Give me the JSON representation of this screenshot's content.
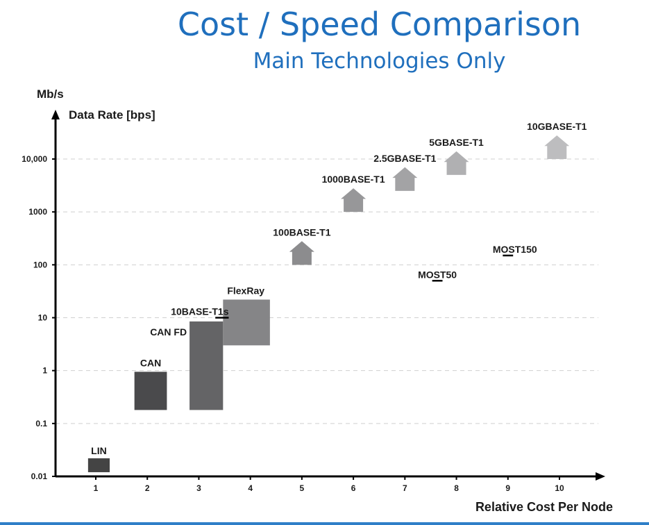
{
  "chart_data": {
    "type": "bar",
    "title": "Cost / Speed Comparison",
    "subtitle": "Main Technologies Only",
    "ylabel_unit": "Mb/s",
    "ylabel": "Data Rate [bps]",
    "xlabel": "Relative Cost Per Node",
    "y_scale": "log",
    "ylim": [
      0.01,
      30000
    ],
    "xlim": [
      0.3,
      11
    ],
    "x_ticks": [
      "1",
      "2",
      "3",
      "4",
      "5",
      "6",
      "7",
      "8",
      "9",
      "10"
    ],
    "y_ticks": [
      {
        "value": 0.01,
        "label": "0.01"
      },
      {
        "value": 0.1,
        "label": "0.1"
      },
      {
        "value": 1,
        "label": "1"
      },
      {
        "value": 10,
        "label": "10"
      },
      {
        "value": 100,
        "label": "100"
      },
      {
        "value": 1000,
        "label": "1000"
      },
      {
        "value": 10000,
        "label": "10,000"
      }
    ],
    "grid": true,
    "technologies": [
      {
        "name": "LIN",
        "kind": "box",
        "x_range": [
          0.85,
          1.27
        ],
        "y_range": [
          0.012,
          0.022
        ],
        "color": "#444444"
      },
      {
        "name": "CAN",
        "kind": "box",
        "x_range": [
          1.75,
          2.38
        ],
        "y_range": [
          0.18,
          0.95
        ],
        "color": "#4a4a4c"
      },
      {
        "name": "CAN FD",
        "kind": "box",
        "x_range": [
          2.82,
          3.47
        ],
        "y_range": [
          0.18,
          8.5
        ],
        "color": "#646466"
      },
      {
        "name": "FlexRay",
        "kind": "box",
        "x_range": [
          3.47,
          4.38
        ],
        "y_range": [
          3,
          22
        ],
        "color": "#858587"
      },
      {
        "name": "10BASE-T1s",
        "kind": "tick",
        "x_range": [
          3.32,
          3.58
        ],
        "y": 10
      },
      {
        "name": "100BASE-T1",
        "kind": "arrow",
        "x": 5.0,
        "y_range": [
          100,
          280
        ],
        "color": "#8c8c8e"
      },
      {
        "name": "1000BASE-T1",
        "kind": "arrow",
        "x": 6.0,
        "y_range": [
          1000,
          2800
        ],
        "color": "#979799"
      },
      {
        "name": "2.5GBASE-T1",
        "kind": "arrow",
        "x": 7.0,
        "y_range": [
          2500,
          7000
        ],
        "color": "#a3a3a5"
      },
      {
        "name": "5GBASE-T1",
        "kind": "arrow",
        "x": 8.0,
        "y_range": [
          5000,
          14000
        ],
        "color": "#b0b0b2"
      },
      {
        "name": "10GBASE-T1",
        "kind": "arrow",
        "x": 9.95,
        "y_range": [
          10000,
          28000
        ],
        "color": "#bdbdbf"
      },
      {
        "name": "MOST50",
        "kind": "tick",
        "x_range": [
          7.53,
          7.73
        ],
        "y": 50
      },
      {
        "name": "MOST150",
        "kind": "tick",
        "x_range": [
          8.9,
          9.1
        ],
        "y": 150
      }
    ]
  }
}
